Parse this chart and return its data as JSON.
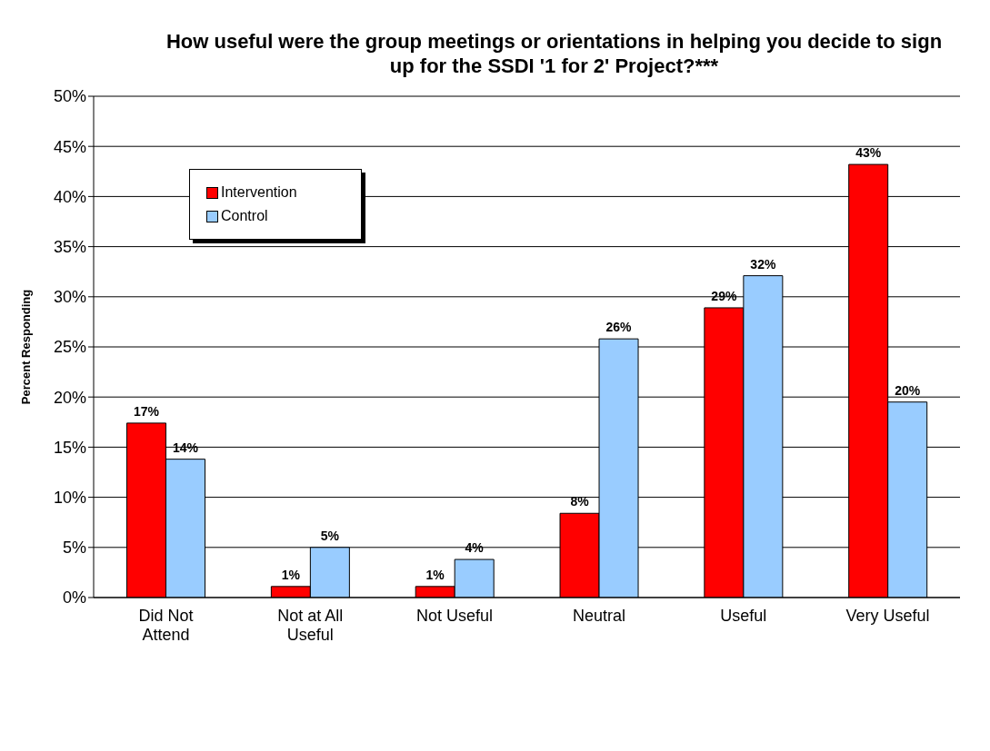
{
  "chart_data": {
    "type": "bar",
    "title": "How useful were the group meetings or orientations in helping you decide to sign up for the SSDI '1 for 2' Project?***",
    "ylabel": "Percent Responding",
    "categories": [
      "Did Not Attend",
      "Not at All Useful",
      "Not Useful",
      "Neutral",
      "Useful",
      "Very Useful"
    ],
    "series": [
      {
        "name": "Intervention",
        "color": "#ff0000",
        "values": [
          17.4,
          1.1,
          1.1,
          8.4,
          28.9,
          43.2
        ],
        "value_labels": [
          "17%",
          "1%",
          "1%",
          "8%",
          "29%",
          "43%"
        ]
      },
      {
        "name": "Control",
        "color": "#99ccff",
        "values": [
          13.8,
          5.0,
          3.8,
          25.8,
          32.1,
          19.5
        ],
        "value_labels": [
          "14%",
          "5%",
          "4%",
          "26%",
          "32%",
          "20%"
        ]
      }
    ],
    "ylim": [
      0,
      50
    ],
    "yticks": [
      {
        "value": 0,
        "label": "0%"
      },
      {
        "value": 5,
        "label": "5%"
      },
      {
        "value": 10,
        "label": "10%"
      },
      {
        "value": 15,
        "label": "15%"
      },
      {
        "value": 20,
        "label": "20%"
      },
      {
        "value": 25,
        "label": "25%"
      },
      {
        "value": 30,
        "label": "30%"
      },
      {
        "value": 35,
        "label": "35%"
      },
      {
        "value": 40,
        "label": "40%"
      },
      {
        "value": 45,
        "label": "45%"
      },
      {
        "value": 50,
        "label": "50%"
      }
    ],
    "grid": "y",
    "legend": "top left"
  }
}
